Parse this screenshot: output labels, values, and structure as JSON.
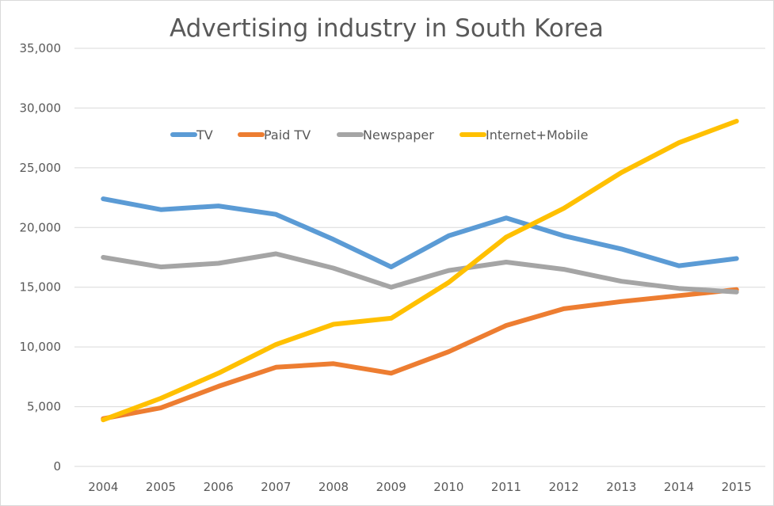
{
  "chart_data": {
    "type": "line",
    "title": "Advertising industry in South Korea",
    "xlabel": "",
    "ylabel": "",
    "categories": [
      "2004",
      "2005",
      "2006",
      "2007",
      "2008",
      "2009",
      "2010",
      "2011",
      "2012",
      "2013",
      "2014",
      "2015"
    ],
    "ylim": [
      0,
      35000
    ],
    "yticks": [
      0,
      5000,
      10000,
      15000,
      20000,
      25000,
      30000,
      35000
    ],
    "ytick_labels": [
      "0",
      "5,000",
      "10,000",
      "15,000",
      "20,000",
      "25,000",
      "30,000",
      "35,000"
    ],
    "grid": true,
    "legend_position": "top-center",
    "series": [
      {
        "name": "TV",
        "color": "#5b9bd5",
        "values": [
          22400,
          21500,
          21800,
          21100,
          19000,
          16700,
          19300,
          20800,
          19300,
          18200,
          16800,
          17400
        ]
      },
      {
        "name": "Paid TV",
        "color": "#ed7d31",
        "values": [
          4000,
          4900,
          6700,
          8300,
          8600,
          7800,
          9600,
          11800,
          13200,
          13800,
          14300,
          14800
        ]
      },
      {
        "name": "Newspaper",
        "color": "#a5a5a5",
        "values": [
          17500,
          16700,
          17000,
          17800,
          16600,
          15000,
          16400,
          17100,
          16500,
          15500,
          14900,
          14600
        ]
      },
      {
        "name": "Internet+Mobile",
        "color": "#ffc000",
        "values": [
          3900,
          5700,
          7800,
          10200,
          11900,
          12400,
          15400,
          19200,
          21600,
          24600,
          27100,
          28900
        ]
      }
    ]
  }
}
